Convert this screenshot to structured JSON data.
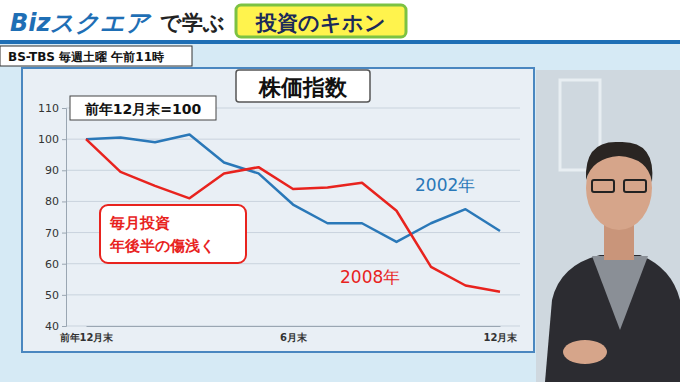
{
  "header": {
    "brand": "Bizスクエア",
    "tagline": "で学ぶ",
    "segment": "投資のキホン",
    "broadcast": "BS-TBS 毎週土曜 午前11時"
  },
  "chart_data": {
    "type": "line",
    "title": "株価指数",
    "subtitle": "前年12月末=100",
    "annotation": [
      "毎月投資",
      "年後半の傷浅く"
    ],
    "categories": [
      "前年12月末",
      null,
      null,
      null,
      null,
      null,
      "6月末",
      null,
      null,
      null,
      null,
      null,
      "12月末"
    ],
    "series": [
      {
        "name": "2002年",
        "color": "#2a78b8",
        "values": [
          100,
          100.5,
          99,
          101.5,
          92.5,
          89,
          79,
          73,
          73,
          67,
          73,
          77.5,
          70.5
        ]
      },
      {
        "name": "2008年",
        "color": "#e8231e",
        "values": [
          100,
          89.5,
          85,
          81,
          89,
          91,
          84,
          84.5,
          86,
          77,
          59,
          53,
          51
        ]
      }
    ],
    "ylim": [
      40,
      110
    ],
    "yticks": [
      40,
      50,
      60,
      70,
      80,
      90,
      100,
      110
    ],
    "grid": true
  }
}
